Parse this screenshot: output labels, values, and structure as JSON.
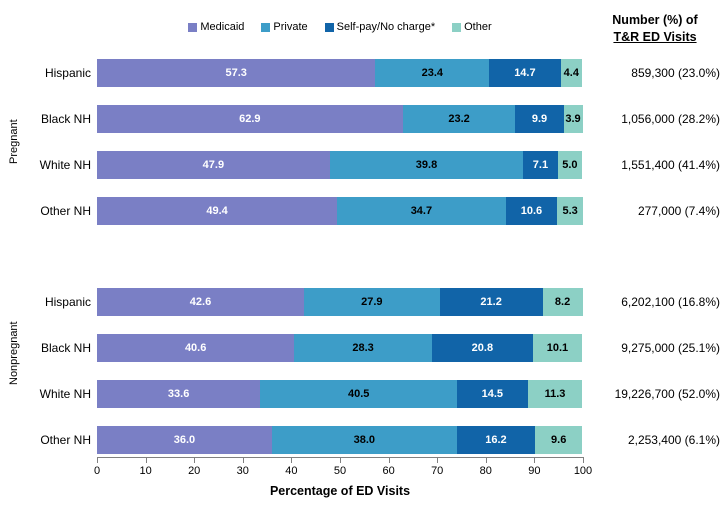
{
  "right_header": {
    "line1": "Number (%) of",
    "line2": "T&R ED Visits"
  },
  "chart_data": {
    "type": "bar",
    "stacked": true,
    "orientation": "horizontal",
    "xlabel": "Percentage of ED Visits",
    "xlim": [
      0,
      100
    ],
    "xticks": [
      0,
      10,
      20,
      30,
      40,
      50,
      60,
      70,
      80,
      90,
      100
    ],
    "legend_position": "top",
    "grid": false,
    "series": [
      {
        "name": "Medicaid",
        "color": "#7a7fc5",
        "label_color": "#ffffff"
      },
      {
        "name": "Private",
        "color": "#3d9dc8",
        "label_color": "#000000"
      },
      {
        "name": "Self-pay/No charge*",
        "color": "#1164a8",
        "label_color": "#ffffff"
      },
      {
        "name": "Other",
        "color": "#8cd0c5",
        "label_color": "#000000"
      }
    ],
    "groups": [
      {
        "name": "Pregnant",
        "rows": [
          {
            "category": "Hispanic",
            "values": [
              57.3,
              23.4,
              14.7,
              4.4
            ],
            "annotation": "859,300 (23.0%)"
          },
          {
            "category": "Black NH",
            "values": [
              62.9,
              23.2,
              9.9,
              3.9
            ],
            "annotation": "1,056,000 (28.2%)"
          },
          {
            "category": "White NH",
            "values": [
              47.9,
              39.8,
              7.1,
              5.0
            ],
            "annotation": "1,551,400 (41.4%)"
          },
          {
            "category": "Other NH",
            "values": [
              49.4,
              34.7,
              10.6,
              5.3
            ],
            "annotation": "277,000 (7.4%)"
          }
        ]
      },
      {
        "name": "Nonpregnant",
        "rows": [
          {
            "category": "Hispanic",
            "values": [
              42.6,
              27.9,
              21.2,
              8.2
            ],
            "annotation": "6,202,100 (16.8%)"
          },
          {
            "category": "Black NH",
            "values": [
              40.6,
              28.3,
              20.8,
              10.1
            ],
            "annotation": "9,275,000 (25.1%)"
          },
          {
            "category": "White NH",
            "values": [
              33.6,
              40.5,
              14.5,
              11.3
            ],
            "annotation": "19,226,700 (52.0%)"
          },
          {
            "category": "Other NH",
            "values": [
              36.0,
              38.0,
              16.2,
              9.6
            ],
            "annotation": "2,253,400 (6.1%)"
          }
        ]
      }
    ]
  }
}
